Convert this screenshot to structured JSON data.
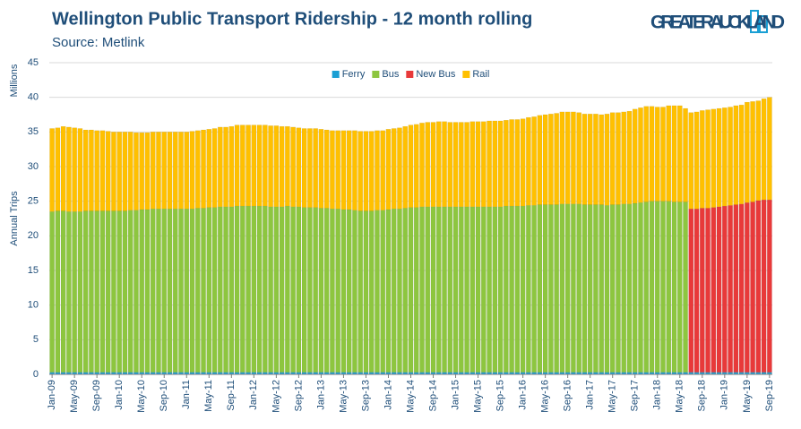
{
  "header": {
    "logo": "GREATER AUCKLAND"
  },
  "chart_data": {
    "type": "stacked_bar",
    "title": "Wellington Public Transport Ridership - 12 month rolling",
    "subtitle": "Source: Metlink",
    "y_label": "Annual Trips",
    "y_unit": "Millions",
    "ylim": [
      0,
      45
    ],
    "yticks": [
      0,
      5,
      10,
      15,
      20,
      25,
      30,
      35,
      40,
      45
    ],
    "grid": true,
    "legend": "top",
    "categories": [
      "Jan-09",
      null,
      null,
      null,
      "May-09",
      null,
      null,
      null,
      "Sep-09",
      null,
      null,
      null,
      "Jan-10",
      null,
      null,
      null,
      "May-10",
      null,
      null,
      null,
      "Sep-10",
      null,
      null,
      null,
      "Jan-11",
      null,
      null,
      null,
      "May-11",
      null,
      null,
      null,
      "Sep-11",
      null,
      null,
      null,
      "Jan-12",
      null,
      null,
      null,
      "May-12",
      null,
      null,
      null,
      "Sep-12",
      null,
      null,
      null,
      "Jan-13",
      null,
      null,
      null,
      "May-13",
      null,
      null,
      null,
      "Sep-13",
      null,
      null,
      null,
      "Jan-14",
      null,
      null,
      null,
      "May-14",
      null,
      null,
      null,
      "Sep-14",
      null,
      null,
      null,
      "Jan-15",
      null,
      null,
      null,
      "May-15",
      null,
      null,
      null,
      "Sep-15",
      null,
      null,
      null,
      "Jan-16",
      null,
      null,
      null,
      "May-16",
      null,
      null,
      null,
      "Sep-16",
      null,
      null,
      null,
      "Jan-17",
      null,
      null,
      null,
      "May-17",
      null,
      null,
      null,
      "Sep-17",
      null,
      null,
      null,
      "Jan-18",
      null,
      null,
      null,
      "May-18",
      null,
      null,
      null,
      "Sep-18",
      null,
      null,
      null,
      "Jan-19",
      null,
      null,
      null,
      "May-19",
      null,
      null,
      null,
      "Sep-19"
    ],
    "series": [
      {
        "name": "Ferry",
        "color": "#1a9fd4",
        "values": [
          0.3,
          0.3,
          0.3,
          0.3,
          0.3,
          0.3,
          0.3,
          0.3,
          0.3,
          0.3,
          0.3,
          0.3,
          0.3,
          0.3,
          0.3,
          0.3,
          0.3,
          0.3,
          0.3,
          0.3,
          0.3,
          0.3,
          0.3,
          0.3,
          0.3,
          0.3,
          0.3,
          0.3,
          0.3,
          0.3,
          0.3,
          0.3,
          0.3,
          0.3,
          0.3,
          0.3,
          0.3,
          0.3,
          0.3,
          0.3,
          0.3,
          0.3,
          0.3,
          0.3,
          0.3,
          0.3,
          0.3,
          0.3,
          0.3,
          0.3,
          0.3,
          0.3,
          0.3,
          0.3,
          0.3,
          0.3,
          0.3,
          0.3,
          0.3,
          0.3,
          0.3,
          0.3,
          0.3,
          0.3,
          0.3,
          0.3,
          0.3,
          0.3,
          0.3,
          0.3,
          0.3,
          0.3,
          0.3,
          0.3,
          0.3,
          0.3,
          0.3,
          0.3,
          0.3,
          0.3,
          0.3,
          0.3,
          0.3,
          0.3,
          0.3,
          0.3,
          0.3,
          0.3,
          0.3,
          0.3,
          0.3,
          0.3,
          0.3,
          0.3,
          0.3,
          0.3,
          0.3,
          0.3,
          0.3,
          0.3,
          0.3,
          0.3,
          0.3,
          0.3,
          0.3,
          0.3,
          0.3,
          0.3,
          0.3,
          0.3,
          0.3,
          0.3,
          0.3,
          0.3,
          0.3,
          0.3,
          0.3,
          0.3,
          0.3,
          0.3,
          0.3,
          0.3,
          0.3,
          0.3,
          0.3,
          0.3,
          0.3,
          0.3,
          0.3
        ]
      },
      {
        "name": "Bus",
        "color": "#8dc63f",
        "values": [
          23.2,
          23.3,
          23.3,
          23.2,
          23.2,
          23.2,
          23.3,
          23.3,
          23.3,
          23.3,
          23.3,
          23.3,
          23.3,
          23.3,
          23.4,
          23.4,
          23.5,
          23.5,
          23.6,
          23.6,
          23.6,
          23.6,
          23.6,
          23.6,
          23.6,
          23.6,
          23.7,
          23.7,
          23.8,
          23.8,
          23.9,
          23.9,
          23.9,
          24.0,
          24.0,
          24.0,
          24.0,
          24.0,
          24.0,
          23.9,
          23.9,
          23.9,
          24.0,
          23.9,
          23.9,
          23.8,
          23.8,
          23.8,
          23.7,
          23.7,
          23.6,
          23.6,
          23.5,
          23.5,
          23.4,
          23.3,
          23.3,
          23.3,
          23.4,
          23.4,
          23.5,
          23.6,
          23.6,
          23.7,
          23.8,
          23.8,
          23.9,
          23.9,
          23.9,
          23.9,
          23.9,
          23.9,
          23.9,
          23.9,
          23.9,
          23.9,
          23.9,
          23.9,
          23.9,
          23.9,
          23.9,
          24.0,
          24.0,
          24.0,
          24.0,
          24.1,
          24.1,
          24.2,
          24.2,
          24.2,
          24.2,
          24.3,
          24.3,
          24.3,
          24.3,
          24.2,
          24.2,
          24.2,
          24.2,
          24.1,
          24.2,
          24.2,
          24.3,
          24.3,
          24.4,
          24.5,
          24.6,
          24.7,
          24.7,
          24.7,
          24.7,
          24.6,
          24.6,
          24.6,
          null,
          null,
          null,
          null,
          null,
          null,
          null,
          null,
          null,
          null,
          null,
          null,
          null,
          null,
          null
        ]
      },
      {
        "name": "New Bus",
        "color": "#e8393a",
        "values": [
          null,
          null,
          null,
          null,
          null,
          null,
          null,
          null,
          null,
          null,
          null,
          null,
          null,
          null,
          null,
          null,
          null,
          null,
          null,
          null,
          null,
          null,
          null,
          null,
          null,
          null,
          null,
          null,
          null,
          null,
          null,
          null,
          null,
          null,
          null,
          null,
          null,
          null,
          null,
          null,
          null,
          null,
          null,
          null,
          null,
          null,
          null,
          null,
          null,
          null,
          null,
          null,
          null,
          null,
          null,
          null,
          null,
          null,
          null,
          null,
          null,
          null,
          null,
          null,
          null,
          null,
          null,
          null,
          null,
          null,
          null,
          null,
          null,
          null,
          null,
          null,
          null,
          null,
          null,
          null,
          null,
          null,
          null,
          null,
          null,
          null,
          null,
          null,
          null,
          null,
          null,
          null,
          null,
          null,
          null,
          null,
          null,
          null,
          null,
          null,
          null,
          null,
          null,
          null,
          null,
          null,
          null,
          null,
          null,
          null,
          null,
          null,
          null,
          null,
          23.6,
          23.6,
          23.7,
          23.7,
          23.8,
          23.9,
          24.0,
          24.1,
          24.2,
          24.3,
          24.5,
          24.6,
          24.8,
          24.9,
          24.9
        ]
      },
      {
        "name": "Rail",
        "color": "#ffc000",
        "values": [
          12.0,
          12.0,
          12.2,
          12.2,
          12.1,
          12.0,
          11.7,
          11.7,
          11.6,
          11.6,
          11.5,
          11.4,
          11.4,
          11.4,
          11.3,
          11.2,
          11.1,
          11.1,
          11.1,
          11.1,
          11.1,
          11.1,
          11.1,
          11.1,
          11.1,
          11.2,
          11.2,
          11.3,
          11.3,
          11.4,
          11.5,
          11.5,
          11.6,
          11.7,
          11.7,
          11.7,
          11.7,
          11.7,
          11.7,
          11.7,
          11.7,
          11.6,
          11.5,
          11.5,
          11.4,
          11.4,
          11.4,
          11.4,
          11.4,
          11.3,
          11.3,
          11.3,
          11.4,
          11.4,
          11.5,
          11.5,
          11.5,
          11.5,
          11.5,
          11.5,
          11.6,
          11.6,
          11.7,
          11.8,
          11.9,
          12.0,
          12.1,
          12.2,
          12.2,
          12.3,
          12.3,
          12.2,
          12.2,
          12.2,
          12.2,
          12.3,
          12.3,
          12.3,
          12.4,
          12.4,
          12.4,
          12.4,
          12.5,
          12.5,
          12.6,
          12.7,
          12.8,
          12.9,
          13.0,
          13.1,
          13.2,
          13.3,
          13.3,
          13.3,
          13.2,
          13.1,
          13.1,
          13.1,
          13.0,
          13.2,
          13.3,
          13.3,
          13.3,
          13.4,
          13.6,
          13.7,
          13.8,
          13.7,
          13.6,
          13.6,
          13.8,
          13.9,
          13.9,
          13.5,
          13.9,
          14.0,
          14.1,
          14.2,
          14.2,
          14.2,
          14.2,
          14.2,
          14.3,
          14.3,
          14.5,
          14.5,
          14.4,
          14.6,
          14.8
        ]
      }
    ]
  }
}
